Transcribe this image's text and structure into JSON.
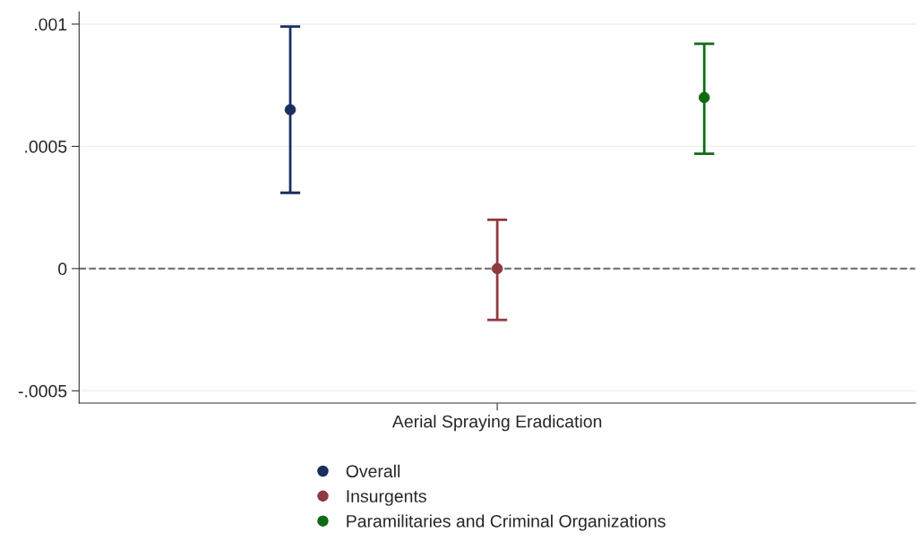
{
  "chart_data": {
    "type": "scatter",
    "categories": [
      "Aerial Spraying Eradication"
    ],
    "series": [
      {
        "name": "Overall",
        "color": "#1a2f5e",
        "values": [
          0.00065
        ],
        "errors": [
          [
            0.00031,
            0.00099
          ]
        ]
      },
      {
        "name": "Insurgents",
        "color": "#903a3f",
        "values": [
          0.0
        ],
        "errors": [
          [
            -0.00021,
            0.0002
          ]
        ]
      },
      {
        "name": "Paramilitaries and Criminal Organizations",
        "color": "#0f6b13",
        "values": [
          0.0007
        ],
        "errors": [
          [
            0.00047,
            0.00092
          ]
        ]
      }
    ],
    "ylim": [
      -0.00055,
      0.00105
    ],
    "yticks": [
      {
        "value": -0.0005,
        "label": "-.0005"
      },
      {
        "value": 0,
        "label": "0"
      },
      {
        "value": 0.0005,
        "label": ".0005"
      },
      {
        "value": 0.001,
        "label": ".001"
      }
    ],
    "ref_lines": [
      {
        "axis": "y",
        "value": 0,
        "color": "#777777",
        "line_style": "dashed"
      }
    ],
    "grid": "y",
    "legend": "bottom",
    "marker": "circle"
  }
}
